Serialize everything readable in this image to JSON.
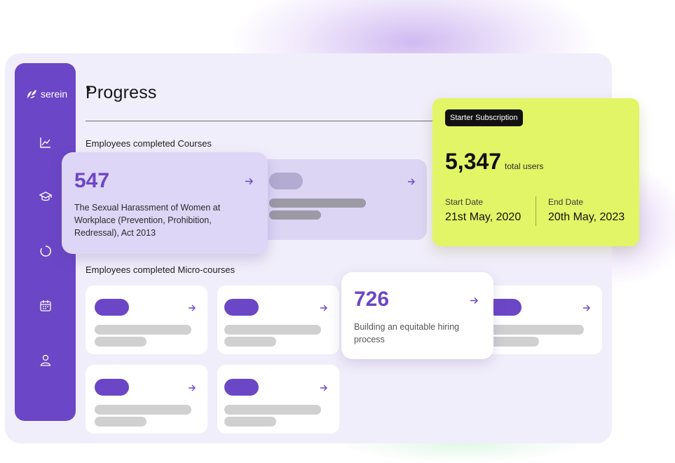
{
  "brand": {
    "name": "serein"
  },
  "page": {
    "title": "Progress"
  },
  "sidebar": {
    "icons": [
      "chart-icon",
      "graduation-cap-icon",
      "progress-ring-icon",
      "calendar-icon",
      "user-icon"
    ]
  },
  "courses": {
    "heading": "Employees completed Courses",
    "featured": {
      "count": "547",
      "title": "The Sexual Harassment of Women at Workplace (Prevention, Prohibition, Redressal), Act 2013"
    }
  },
  "micro_courses": {
    "heading": "Employees completed Micro-courses",
    "featured": {
      "count": "726",
      "title": "Building an equitable hiring process"
    }
  },
  "subscription": {
    "badge": "Starter Subscription",
    "users_count": "5,347",
    "users_label": "total users",
    "start_label": "Start Date",
    "start_value": "21st May, 2020",
    "end_label": "End Date",
    "end_value": "20th May, 2023"
  },
  "colors": {
    "brand": "#6b46c6",
    "accent": "#e2f566",
    "background": "#f1eefb"
  }
}
